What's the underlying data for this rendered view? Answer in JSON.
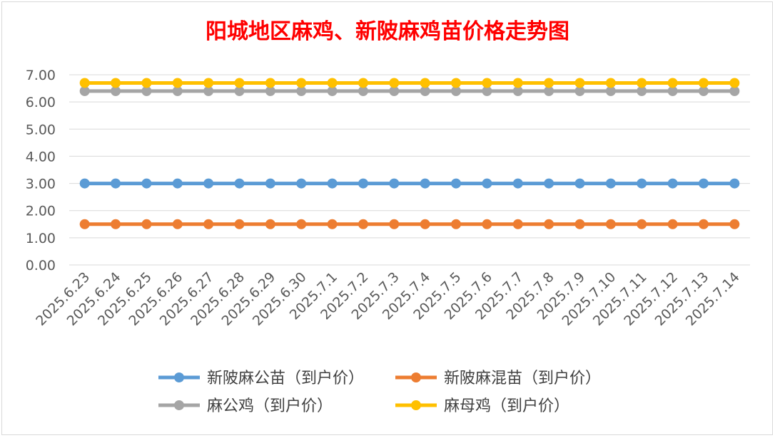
{
  "chart_data": {
    "type": "line",
    "title": "阳城地区麻鸡、新陂麻鸡苗价格走势图",
    "title_color": "#FF0000",
    "xlabel": "",
    "ylabel": "",
    "ylim": [
      0,
      7
    ],
    "yticks": [
      "0.00",
      "1.00",
      "2.00",
      "3.00",
      "4.00",
      "5.00",
      "6.00",
      "7.00"
    ],
    "grid": true,
    "legend_position": "bottom",
    "categories": [
      "2025.6.23",
      "2025.6.24",
      "2025.6.25",
      "2025.6.26",
      "2025.6.27",
      "2025.6.28",
      "2025.6.29",
      "2025.6.30",
      "2025.7.1",
      "2025.7.2",
      "2025.7.3",
      "2025.7.4",
      "2025.7.5",
      "2025.7.6",
      "2025.7.7",
      "2025.7.8",
      "2025.7.9",
      "2025.7.10",
      "2025.7.11",
      "2025.7.12",
      "2025.7.13",
      "2025.7.14"
    ],
    "series": [
      {
        "name": "新陂麻公苗（到户价）",
        "color": "#5B9BD5",
        "values": [
          3.0,
          3.0,
          3.0,
          3.0,
          3.0,
          3.0,
          3.0,
          3.0,
          3.0,
          3.0,
          3.0,
          3.0,
          3.0,
          3.0,
          3.0,
          3.0,
          3.0,
          3.0,
          3.0,
          3.0,
          3.0,
          3.0
        ]
      },
      {
        "name": "新陂麻混苗（到户价）",
        "color": "#ED7D31",
        "values": [
          1.5,
          1.5,
          1.5,
          1.5,
          1.5,
          1.5,
          1.5,
          1.5,
          1.5,
          1.5,
          1.5,
          1.5,
          1.5,
          1.5,
          1.5,
          1.5,
          1.5,
          1.5,
          1.5,
          1.5,
          1.5,
          1.5
        ]
      },
      {
        "name": "麻公鸡（到户价）",
        "color": "#A5A5A5",
        "values": [
          6.4,
          6.4,
          6.4,
          6.4,
          6.4,
          6.4,
          6.4,
          6.4,
          6.4,
          6.4,
          6.4,
          6.4,
          6.4,
          6.4,
          6.4,
          6.4,
          6.4,
          6.4,
          6.4,
          6.4,
          6.4,
          6.4
        ]
      },
      {
        "name": "麻母鸡（到户价）",
        "color": "#FFC000",
        "values": [
          6.7,
          6.7,
          6.7,
          6.7,
          6.7,
          6.7,
          6.7,
          6.7,
          6.7,
          6.7,
          6.7,
          6.7,
          6.7,
          6.7,
          6.7,
          6.7,
          6.7,
          6.7,
          6.7,
          6.7,
          6.7,
          6.7
        ]
      }
    ]
  }
}
